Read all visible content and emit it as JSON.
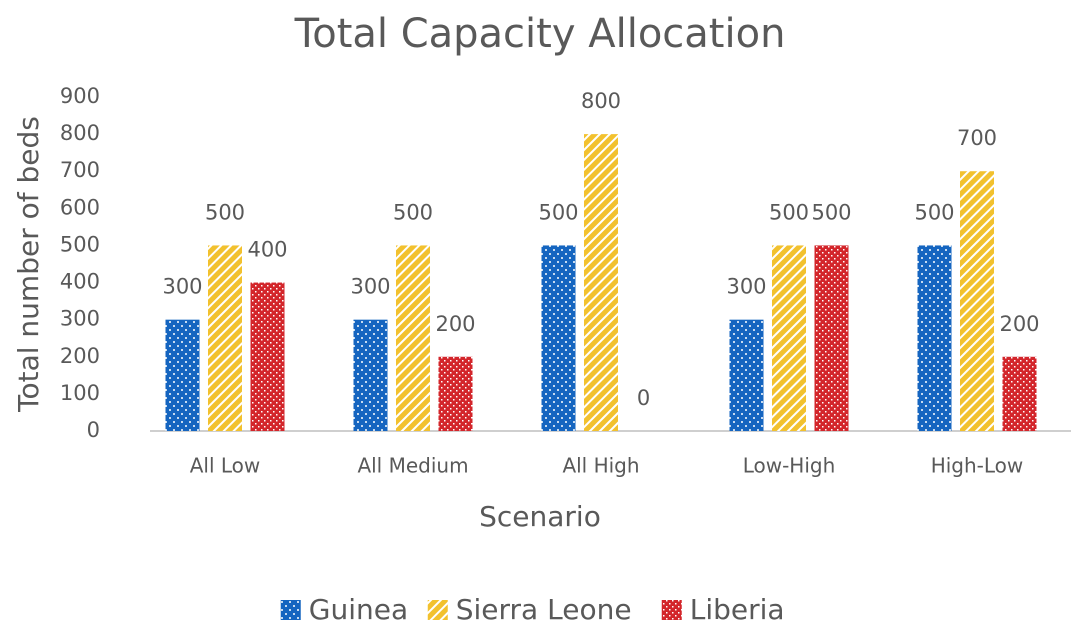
{
  "chart_data": {
    "type": "bar",
    "title": "Total Capacity Allocation",
    "x_label": "Scenario",
    "y_label": "Total number of beds",
    "categories": [
      "All Low",
      "All Medium",
      "All High",
      "Low-High",
      "High-Low"
    ],
    "series": [
      {
        "name": "Guinea",
        "color": "#1565c0",
        "values": [
          300,
          300,
          500,
          300,
          500
        ]
      },
      {
        "name": "Sierra Leone",
        "color": "#f2c12e",
        "values": [
          500,
          500,
          800,
          500,
          700
        ]
      },
      {
        "name": "Liberia",
        "color": "#d3262b",
        "values": [
          400,
          200,
          0,
          500,
          200
        ]
      }
    ],
    "ylim": [
      0,
      900
    ],
    "yticks": [
      0,
      100,
      200,
      300,
      400,
      500,
      600,
      700,
      800,
      900
    ],
    "grid": false,
    "legend": "bottom"
  }
}
